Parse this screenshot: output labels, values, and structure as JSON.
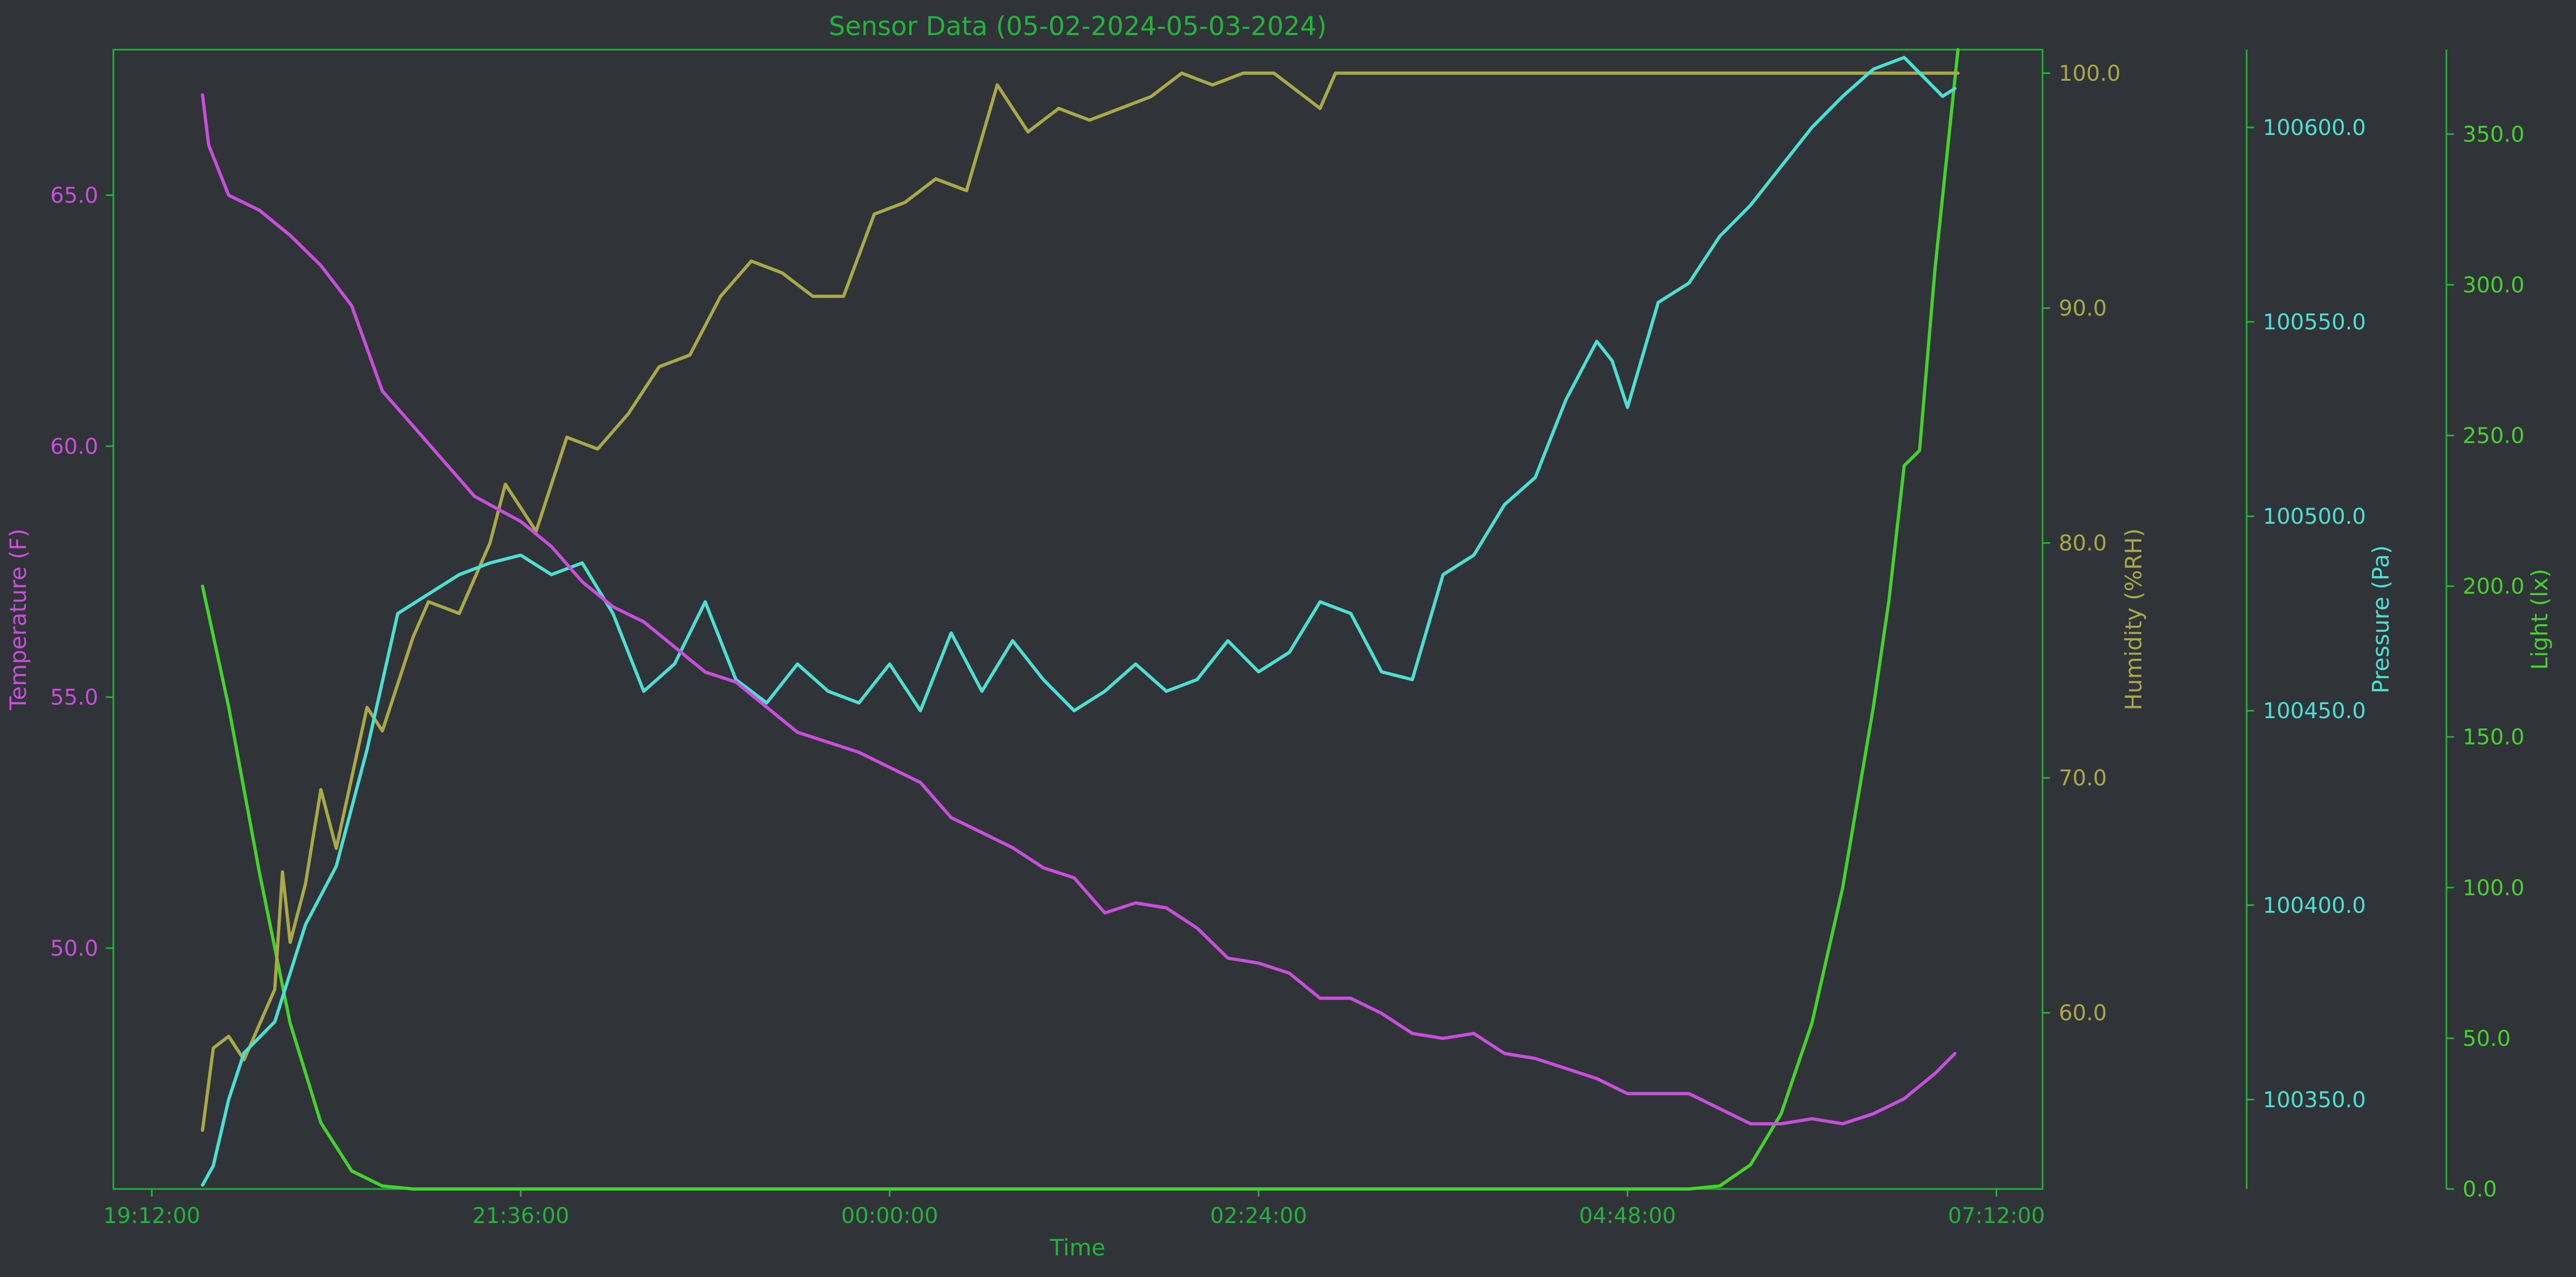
{
  "chart_data": {
    "type": "line",
    "title": "Sensor Data (05-02-2024-05-03-2024)",
    "xlabel": "Time",
    "x_ticks": [
      "19:12:00",
      "21:36:00",
      "00:00:00",
      "02:24:00",
      "04:48:00",
      "07:12:00"
    ],
    "x_tick_hours": [
      0,
      2.4,
      4.8,
      7.2,
      9.6,
      12.0
    ],
    "x_range_hours_after_19_12": [
      -0.25,
      12.3
    ],
    "grid": false,
    "legend": "none",
    "colors": {
      "background": "#303338",
      "frame": "#22b33a",
      "title": "#22b33a",
      "temperature": "#c84fdc",
      "humidity": "#aaa94a",
      "pressure": "#4ce0d2",
      "light": "#45d12e"
    },
    "axes": [
      {
        "key": "temperature",
        "label": "Temperature (F)",
        "side": "left",
        "range": [
          45.2,
          67.9
        ],
        "ticks": [
          50.0,
          55.0,
          60.0,
          65.0
        ],
        "tick_labels": [
          "50.0",
          "55.0",
          "60.0",
          "65.0"
        ]
      },
      {
        "key": "humidity",
        "label": "Humidity (%RH)",
        "side": "right-1",
        "range": [
          52.5,
          101.0
        ],
        "ticks": [
          60.0,
          70.0,
          80.0,
          90.0,
          100.0
        ],
        "tick_labels": [
          "60.0",
          "70.0",
          "80.0",
          "90.0",
          "100.0"
        ]
      },
      {
        "key": "pressure",
        "label": "Pressure (Pa)",
        "side": "right-2",
        "range": [
          100327,
          100620
        ],
        "ticks": [
          100350.0,
          100400.0,
          100450.0,
          100500.0,
          100550.0,
          100600.0
        ],
        "tick_labels": [
          "100350.0",
          "100400.0",
          "100450.0",
          "100500.0",
          "100550.0",
          "100600.0"
        ]
      },
      {
        "key": "light",
        "label": "Light (lx)",
        "side": "right-3",
        "range": [
          0,
          378
        ],
        "ticks": [
          0,
          50,
          100,
          150,
          200,
          250,
          300,
          350
        ],
        "tick_labels": [
          "0.0",
          "50.0",
          "100.0",
          "150.0",
          "200.0",
          "250.0",
          "300.0",
          "350.0"
        ]
      }
    ],
    "series": [
      {
        "key": "temperature",
        "x": [
          0.33,
          0.37,
          0.5,
          0.7,
          0.9,
          1.1,
          1.3,
          1.5,
          1.7,
          1.9,
          2.1,
          2.4,
          2.6,
          2.8,
          3.0,
          3.2,
          3.4,
          3.6,
          3.8,
          4.0,
          4.2,
          4.4,
          4.6,
          4.8,
          5.0,
          5.2,
          5.4,
          5.6,
          5.8,
          6.0,
          6.2,
          6.4,
          6.6,
          6.8,
          7.0,
          7.2,
          7.4,
          7.6,
          7.8,
          8.0,
          8.2,
          8.4,
          8.6,
          8.8,
          9.0,
          9.2,
          9.4,
          9.6,
          9.8,
          10.0,
          10.2,
          10.4,
          10.6,
          10.8,
          11.0,
          11.2,
          11.4,
          11.6,
          11.73
        ],
        "values": [
          67.0,
          66.0,
          65.0,
          64.7,
          64.2,
          63.6,
          62.8,
          61.1,
          60.4,
          59.7,
          59.0,
          58.5,
          58.0,
          57.3,
          56.8,
          56.5,
          56.0,
          55.5,
          55.3,
          54.8,
          54.3,
          54.1,
          53.9,
          53.6,
          53.3,
          52.6,
          52.3,
          52.0,
          51.6,
          51.4,
          50.7,
          50.9,
          50.8,
          50.4,
          49.8,
          49.7,
          49.5,
          49.0,
          49.0,
          48.7,
          48.3,
          48.2,
          48.3,
          47.9,
          47.8,
          47.6,
          47.4,
          47.1,
          47.1,
          47.1,
          46.8,
          46.5,
          46.5,
          46.6,
          46.5,
          46.7,
          47.0,
          47.5,
          47.9
        ]
      },
      {
        "key": "humidity",
        "x": [
          0.33,
          0.4,
          0.5,
          0.6,
          0.8,
          0.85,
          0.9,
          1.0,
          1.1,
          1.2,
          1.3,
          1.4,
          1.5,
          1.6,
          1.7,
          1.8,
          2.0,
          2.1,
          2.2,
          2.3,
          2.5,
          2.7,
          2.9,
          3.1,
          3.3,
          3.5,
          3.7,
          3.9,
          4.1,
          4.3,
          4.5,
          4.7,
          4.9,
          5.1,
          5.3,
          5.5,
          5.7,
          5.9,
          6.1,
          6.3,
          6.5,
          6.7,
          6.9,
          7.1,
          7.3,
          7.5,
          7.6,
          7.7,
          11.6,
          11.75
        ],
        "values": [
          55.0,
          58.5,
          59.0,
          58.0,
          61.0,
          66.0,
          63.0,
          65.5,
          69.5,
          67.0,
          70.0,
          73.0,
          72.0,
          74.0,
          76.0,
          77.5,
          77.0,
          78.5,
          80.0,
          82.5,
          80.5,
          84.5,
          84.0,
          85.5,
          87.5,
          88.0,
          90.5,
          92.0,
          91.5,
          90.5,
          90.5,
          94.0,
          94.5,
          95.5,
          95.0,
          99.5,
          97.5,
          98.5,
          98.0,
          98.5,
          99.0,
          100.0,
          99.5,
          100.0,
          100.0,
          99.0,
          98.5,
          100.0,
          100.0,
          100.0
        ]
      },
      {
        "key": "pressure",
        "x": [
          0.33,
          0.4,
          0.5,
          0.6,
          0.8,
          1.0,
          1.2,
          1.4,
          1.6,
          1.8,
          2.0,
          2.2,
          2.4,
          2.6,
          2.8,
          3.0,
          3.2,
          3.4,
          3.6,
          3.8,
          4.0,
          4.2,
          4.4,
          4.6,
          4.8,
          5.0,
          5.2,
          5.4,
          5.6,
          5.8,
          6.0,
          6.2,
          6.4,
          6.6,
          6.8,
          7.0,
          7.2,
          7.4,
          7.6,
          7.8,
          8.0,
          8.2,
          8.4,
          8.6,
          8.8,
          9.0,
          9.2,
          9.4,
          9.5,
          9.6,
          9.8,
          10.0,
          10.2,
          10.4,
          10.6,
          10.8,
          11.0,
          11.2,
          11.4,
          11.55,
          11.65,
          11.73
        ],
        "values": [
          100328,
          100333,
          100350,
          100362,
          100370,
          100395,
          100410,
          100440,
          100475,
          100480,
          100485,
          100488,
          100490,
          100485,
          100488,
          100475,
          100455,
          100462,
          100478,
          100458,
          100452,
          100462,
          100455,
          100452,
          100462,
          100450,
          100470,
          100455,
          100468,
          100458,
          100450,
          100455,
          100462,
          100455,
          100458,
          100468,
          100460,
          100465,
          100478,
          100475,
          100460,
          100458,
          100485,
          100490,
          100503,
          100510,
          100530,
          100545,
          100540,
          100528,
          100555,
          100560,
          100572,
          100580,
          100590,
          100600,
          100608,
          100615,
          100618,
          100612,
          100608,
          100610
        ]
      },
      {
        "key": "light",
        "x": [
          0.33,
          0.5,
          0.7,
          0.9,
          1.1,
          1.3,
          1.5,
          1.7,
          2.0,
          3.0,
          5.0,
          7.0,
          9.0,
          10.0,
          10.2,
          10.4,
          10.6,
          10.8,
          11.0,
          11.2,
          11.3,
          11.4,
          11.5,
          11.6,
          11.75
        ],
        "values": [
          200,
          160,
          105,
          55,
          22,
          6,
          1,
          0,
          0,
          0,
          0,
          0,
          0,
          0,
          1,
          8,
          25,
          55,
          100,
          160,
          195,
          240,
          245,
          305,
          378
        ]
      }
    ]
  }
}
